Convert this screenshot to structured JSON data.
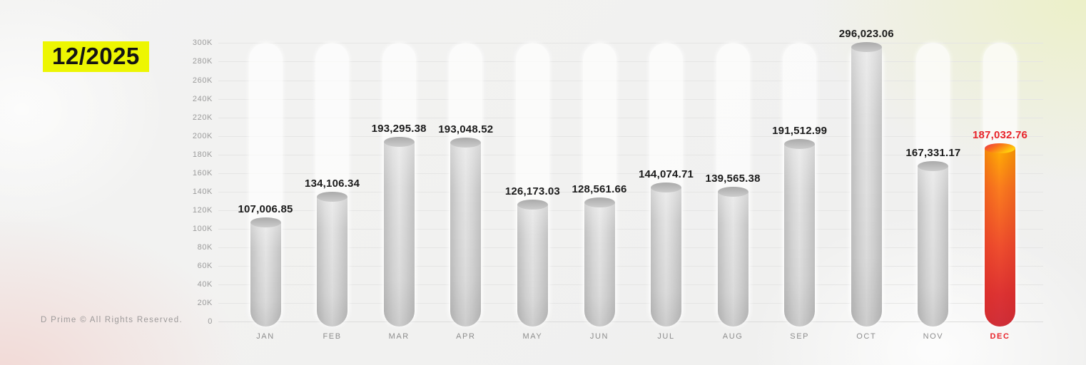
{
  "title": "12/2025",
  "footer": "D Prime © All Rights Reserved.",
  "colors": {
    "highlight": "#edf602",
    "title_text": "#141414",
    "accent_red": "#e8232a",
    "axis_label": "#9b9b9b",
    "month_label": "#8d8d8d",
    "value_label": "#1b1b1b"
  },
  "chart_data": {
    "type": "bar",
    "title": "12/2025",
    "categories": [
      "JAN",
      "FEB",
      "MAR",
      "APR",
      "MAY",
      "JUN",
      "JUL",
      "AUG",
      "SEP",
      "OCT",
      "NOV",
      "DEC"
    ],
    "values": [
      107006.85,
      134106.34,
      193295.38,
      193048.52,
      126173.03,
      128561.66,
      144074.71,
      139565.38,
      191512.99,
      296023.06,
      167331.17,
      187032.76
    ],
    "value_labels": [
      "107,006.85",
      "134,106.34",
      "193,295.38",
      "193,048.52",
      "126,173.03",
      "128,561.66",
      "144,074.71",
      "139,565.38",
      "191,512.99",
      "296,023.06",
      "167,331.17",
      "187,032.76"
    ],
    "highlighted_index": 11,
    "highlighted_category": "DEC",
    "ylim": [
      0,
      300000
    ],
    "yticks": [
      0,
      20000,
      40000,
      60000,
      80000,
      100000,
      120000,
      140000,
      160000,
      180000,
      200000,
      220000,
      240000,
      260000,
      280000,
      300000
    ],
    "ytick_labels": [
      "0",
      "20K",
      "40K",
      "60K",
      "80K",
      "100K",
      "120K",
      "140K",
      "160K",
      "180K",
      "200K",
      "220K",
      "240K",
      "260K",
      "280K",
      "300K"
    ],
    "grid": true,
    "legend_position": "none",
    "xlabel": "",
    "ylabel": ""
  }
}
